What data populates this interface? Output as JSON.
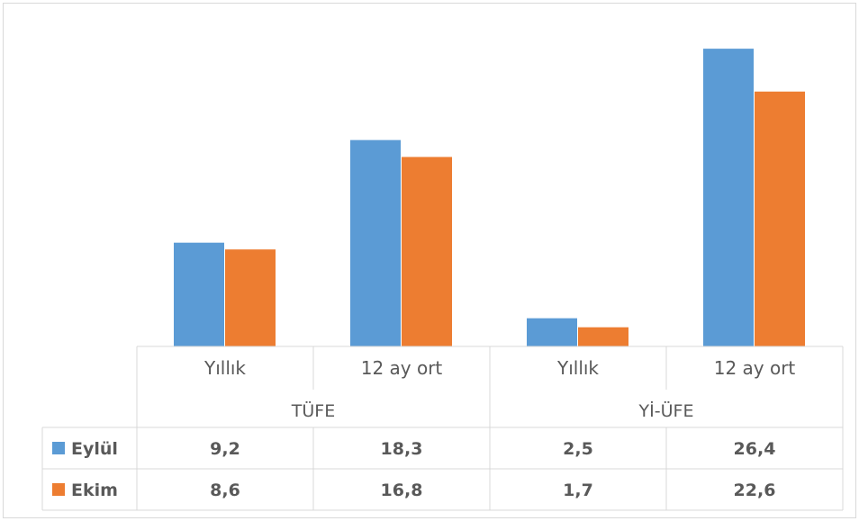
{
  "chart_data": {
    "type": "bar",
    "groups": [
      {
        "name": "TÜFE",
        "categories": [
          "Yıllık",
          "12 ay ort"
        ]
      },
      {
        "name": "Yİ-ÜFE",
        "categories": [
          "Yıllık",
          "12 ay ort"
        ]
      }
    ],
    "categories": [
      "Yıllık",
      "12 ay ort",
      "Yıllık",
      "12 ay ort"
    ],
    "series": [
      {
        "name": "Eylül",
        "values": [
          9.2,
          18.3,
          2.5,
          26.4
        ],
        "labels": [
          "9,2",
          "18,3",
          "2,5",
          "26,4"
        ]
      },
      {
        "name": "Ekim",
        "values": [
          8.6,
          16.8,
          1.7,
          22.6
        ],
        "labels": [
          "8,6",
          "16,8",
          "1,7",
          "22,6"
        ]
      }
    ],
    "colors": {
      "Eylül": "#5B9BD5",
      "Ekim": "#ED7D31",
      "grid": "#D9D9D9",
      "text": "#595959"
    },
    "ylim": [
      0,
      30
    ],
    "legend": "data-table",
    "grid": false
  }
}
